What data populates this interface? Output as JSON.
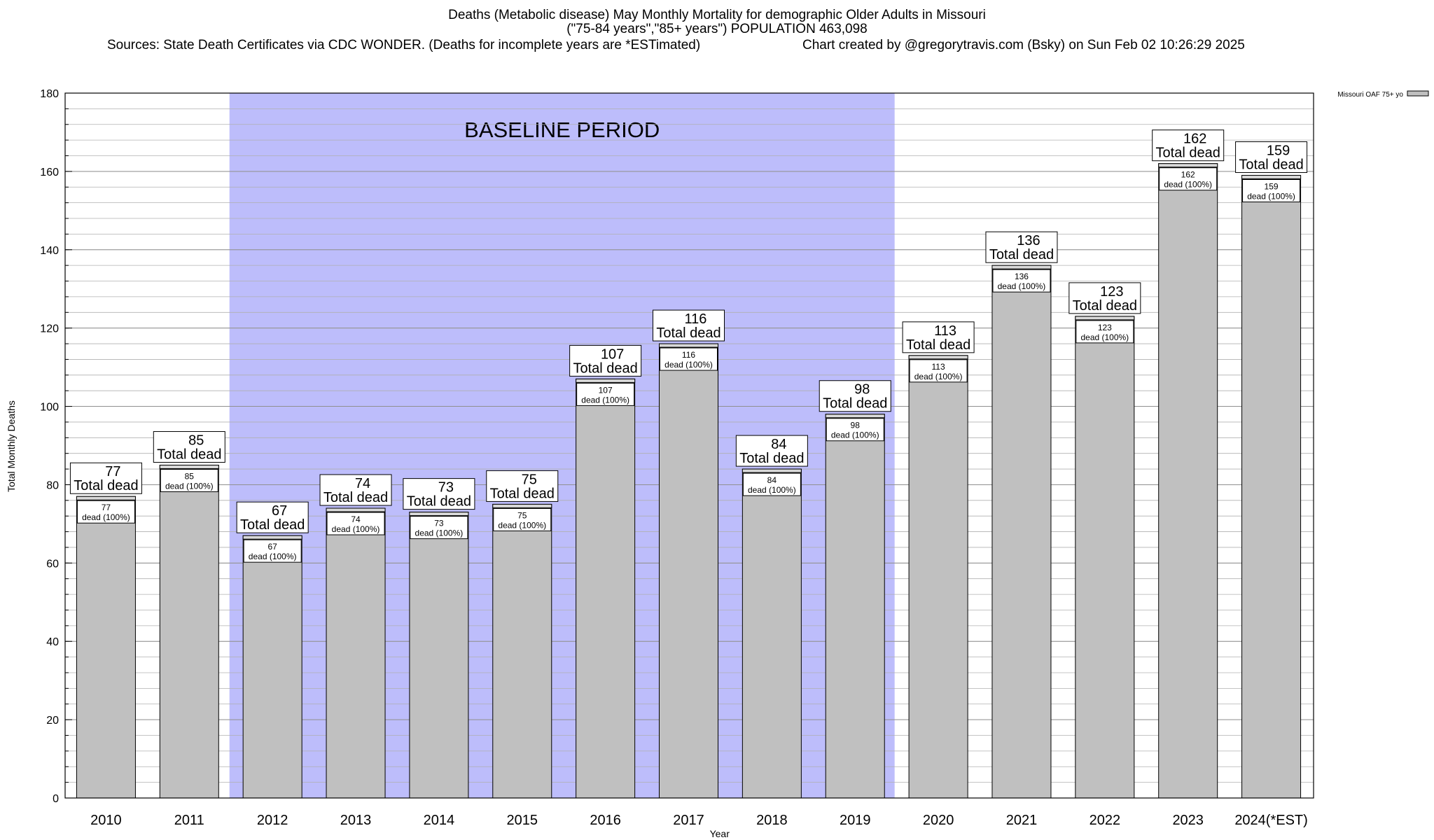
{
  "chart_data": {
    "type": "bar",
    "title": "Deaths (Metabolic disease) May Monthly Mortality for demographic Older Adults in Missouri",
    "subtitle": "(\"75-84 years\",\"85+ years\") POPULATION 463,098",
    "sources": "Sources: State Death Certificates via CDC WONDER. (Deaths for incomplete years are *ESTimated)",
    "credit": "Chart created by @gregorytravis.com (Bsky) on Sun Feb 02 10:26:29 2025",
    "xlabel": "Year",
    "ylabel": "Total Monthly Deaths",
    "ylim": [
      0,
      180
    ],
    "yticks": [
      "0",
      "20",
      "40",
      "60",
      "80",
      "100",
      "120",
      "140",
      "160",
      "180"
    ],
    "categories": [
      "2010",
      "2011",
      "2012",
      "2013",
      "2014",
      "2015",
      "2016",
      "2017",
      "2018",
      "2019",
      "2020",
      "2021",
      "2022",
      "2023",
      "2024(*EST)"
    ],
    "series": [
      {
        "name": "Missouri OAF 75+ yo",
        "values": [
          77,
          85,
          67,
          74,
          73,
          75,
          107,
          116,
          84,
          98,
          113,
          136,
          123,
          162,
          159
        ]
      }
    ],
    "bar_label_suffix": "dead (100%)",
    "total_label": "Total dead",
    "baseline": {
      "label": "BASELINE PERIOD",
      "start": "2012",
      "end": "2019",
      "color": "#bdbdfb"
    },
    "bar_color": "#c0c0c0",
    "legend": {
      "position": "top-right",
      "label": "Missouri OAF 75+ yo"
    }
  }
}
